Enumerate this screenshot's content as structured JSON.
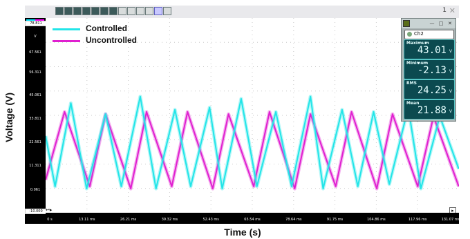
{
  "toolbar": {
    "page_number": "1",
    "buttons": [
      "chart-icon",
      "channel-icon",
      "cursor-icon",
      "grid-icon",
      "zoom-icon",
      "measure-icon",
      "settings-icon",
      "pencil-icon",
      "save-icon",
      "comment-icon",
      "cross-icon",
      "lines-icon",
      "overlay-icon"
    ]
  },
  "y_scale": {
    "ticks": [
      "78.811",
      "V",
      "67.561",
      "56.311",
      "45.061",
      "33.811",
      "22.561",
      "11.311",
      "0.061",
      "-10.000"
    ]
  },
  "x_scale": {
    "ticks": [
      "0 s",
      "13.11 ms",
      "26.21 ms",
      "39.32 ms",
      "52.43 ms",
      "65.54 ms",
      "78.64 ms",
      "91.75 ms",
      "104.86 ms",
      "117.96 ms",
      "131.07 ms"
    ]
  },
  "axis_labels": {
    "y": "Voltage (V)",
    "x": "Time (s)"
  },
  "legend": [
    {
      "label": "Controlled",
      "color": "#22e5e8"
    },
    {
      "label": "Uncontrolled",
      "color": "#e020d0"
    }
  ],
  "measurements": {
    "channel": "Ch2",
    "items": [
      {
        "label": "Maximum",
        "value": "43.01",
        "unit": "V"
      },
      {
        "label": "Minimum",
        "value": "-2.13",
        "unit": "V"
      },
      {
        "label": "RMS",
        "value": "24.25",
        "unit": "V"
      },
      {
        "label": "Mean",
        "value": "21.88",
        "unit": "V"
      }
    ]
  },
  "chart_data": {
    "type": "line",
    "ylim": [
      -10,
      78.811
    ],
    "xlim": [
      0,
      131.07
    ],
    "series": [
      {
        "name": "Controlled",
        "color": "#22e5e8",
        "x": [
          0,
          3,
          8,
          13,
          19,
          24,
          30,
          35,
          41,
          46,
          52,
          56,
          62,
          67,
          73,
          78,
          84,
          88,
          94,
          99,
          104,
          109,
          115,
          119,
          125,
          131
        ],
        "y": [
          25,
          2,
          40,
          1,
          35,
          2,
          43,
          1,
          37,
          2,
          38,
          1,
          42,
          2,
          36,
          2,
          43,
          1,
          37,
          2,
          36,
          3,
          38,
          1,
          34,
          10
        ]
      },
      {
        "name": "Uncontrolled",
        "color": "#e020d0",
        "x": [
          0,
          6,
          14,
          19,
          27,
          32,
          40,
          45,
          53,
          58,
          66,
          71,
          79,
          84,
          92,
          97,
          105,
          110,
          118,
          123,
          131
        ],
        "y": [
          5,
          36,
          2,
          35,
          1,
          36,
          2,
          36,
          1,
          35,
          2,
          36,
          1,
          35,
          2,
          36,
          1,
          35,
          2,
          34,
          2
        ]
      }
    ]
  }
}
